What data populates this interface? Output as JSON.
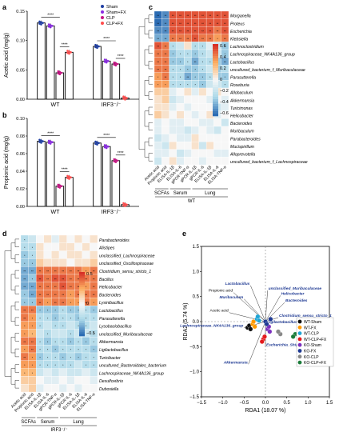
{
  "panels": {
    "a": "a",
    "b": "b",
    "c": "c",
    "d": "d",
    "e": "e"
  },
  "colors": {
    "sham": "#1f3fa3",
    "sham_fx": "#8a2be2",
    "clp": "#c71585",
    "clp_fx": "#ff4d4d",
    "hm_hi": "#d73027",
    "hm_lo": "#2b6bb3",
    "hm_mid": "#f7f7f7"
  },
  "legend_ab": [
    "Sham",
    "Sham+FX",
    "CLP",
    "CLP+FX"
  ],
  "sig": "****",
  "chart_data": [
    {
      "type": "bar",
      "panel": "a",
      "ylabel": "Acetic acid (mg/g)",
      "ylim": [
        0,
        0.15
      ],
      "yticks": [
        "0.00",
        "0.05",
        "0.10",
        "0.15"
      ],
      "categories": [
        "WT",
        "IRF3⁻/⁻"
      ],
      "series": [
        {
          "name": "Sham",
          "values": [
            0.13,
            0.09
          ]
        },
        {
          "name": "Sham+FX",
          "values": [
            0.125,
            0.065
          ]
        },
        {
          "name": "CLP",
          "values": [
            0.045,
            0.06
          ]
        },
        {
          "name": "CLP+FX",
          "values": [
            0.08,
            0.002
          ]
        }
      ]
    },
    {
      "type": "bar",
      "panel": "b",
      "ylabel": "Propionic acid (mg/g)",
      "ylim": [
        0,
        0.1
      ],
      "yticks": [
        "0.00",
        "0.02",
        "0.04",
        "0.06",
        "0.08",
        "0.10"
      ],
      "categories": [
        "WT",
        "IRF3⁻/⁻"
      ],
      "series": [
        {
          "name": "Sham",
          "values": [
            0.074,
            0.072
          ]
        },
        {
          "name": "Sham+FX",
          "values": [
            0.073,
            0.068
          ]
        },
        {
          "name": "CLP",
          "values": [
            0.023,
            0.052
          ]
        },
        {
          "name": "CLP+FX",
          "values": [
            0.033,
            0.002
          ]
        }
      ]
    },
    {
      "type": "heatmap",
      "panel": "c",
      "rows": [
        "Morganella",
        "Proteus",
        "Escherichia",
        "Klebsiella",
        "Lachnoclostridium",
        "Lachnospiraceae_NK4A136_group",
        "Lactobacillus",
        "uncultured_bacterium_f_Muribaculaceae",
        "Parasutterella",
        "Roseburia",
        "Allobaculum",
        "Akkermansia",
        "Turicimonas",
        "Helicobacter",
        "Bacteroides",
        "Muribaculum",
        "Parabacteroides",
        "Mucispirillum",
        "Alloprevotella",
        "uncultured_bacterium_f_Lachnospiraceae"
      ],
      "cols": [
        "Acetic acid",
        "Propionic acid",
        "ELISA-IL-1β",
        "ELISA-IL-6",
        "gPCR-TNF-α",
        "gPCR-IL-1β",
        "gPCR-IL-6",
        "ELISA-IL-1β",
        "ELISA-IL-6",
        "ELISA-TNF-α"
      ],
      "values": [
        [
          -0.7,
          -0.6,
          0.6,
          0.6,
          0.6,
          0.6,
          0.6,
          0.6,
          0.6,
          0.6
        ],
        [
          -0.7,
          -0.6,
          0.6,
          0.6,
          0.6,
          0.6,
          0.6,
          0.6,
          0.6,
          0.6
        ],
        [
          -0.6,
          -0.6,
          0.6,
          0.6,
          0.6,
          0.6,
          0.6,
          0.6,
          0.5,
          0.6
        ],
        [
          -0.5,
          -0.5,
          0.5,
          0.5,
          0.5,
          0.6,
          0.5,
          0.5,
          0.4,
          0.5
        ],
        [
          0.6,
          0.5,
          -0.3,
          -0.2,
          0.1,
          -0.3,
          -0.3,
          -0.1,
          -0.2,
          -0.4
        ],
        [
          0.5,
          0.5,
          -0.4,
          -0.3,
          -0.3,
          -0.4,
          -0.3,
          -0.2,
          -0.2,
          -0.4
        ],
        [
          0.5,
          0.5,
          -0.4,
          -0.4,
          -0.3,
          -0.5,
          -0.3,
          -0.3,
          -0.4,
          -0.5
        ],
        [
          0.5,
          0.5,
          -0.3,
          -0.3,
          -0.4,
          -0.4,
          -0.3,
          -0.2,
          -0.4,
          -0.3
        ],
        [
          0.4,
          0.5,
          -0.3,
          -0.3,
          -0.5,
          -0.4,
          -0.4,
          -0.3,
          -0.4,
          -0.4
        ],
        [
          0.4,
          0.4,
          -0.3,
          -0.3,
          -0.3,
          -0.3,
          -0.4,
          -0.2,
          -0.2,
          -0.3
        ],
        [
          0.2,
          0.2,
          -0.1,
          0,
          0.1,
          -0.1,
          0.1,
          0,
          0.1,
          0
        ],
        [
          0.1,
          0.2,
          -0.2,
          -0.1,
          0,
          0,
          0,
          -0.1,
          0,
          -0.1
        ],
        [
          0.1,
          0.1,
          -0.1,
          0,
          -0.1,
          0,
          0,
          0,
          -0.2,
          -0.1
        ],
        [
          0.2,
          0.1,
          0,
          0.1,
          0,
          -0.1,
          0,
          0.1,
          -0.1,
          0
        ],
        [
          -0.1,
          0,
          -0.1,
          -0.1,
          0,
          0,
          -0.1,
          -0.1,
          0,
          -0.2
        ],
        [
          -0.1,
          0,
          -0.1,
          -0.1,
          -0.2,
          -0.1,
          0,
          -0.1,
          -0.2,
          0
        ],
        [
          -0.2,
          -0.1,
          0,
          -0.1,
          -0.1,
          0.1,
          0,
          0,
          0,
          0
        ],
        [
          -0.1,
          -0.2,
          0.1,
          0,
          0,
          0.1,
          -0.2,
          0.1,
          0,
          0
        ],
        [
          -0.1,
          -0.1,
          0,
          -0.2,
          -0.1,
          0,
          0,
          0,
          -0.1,
          -0.1
        ],
        [
          -0.2,
          0,
          0.1,
          -0.1,
          0,
          0,
          -0.1,
          0,
          0,
          0
        ]
      ],
      "scale": {
        "ticks": [
          "0.6",
          "0.4",
          "0.2",
          "0",
          "−0.2",
          "−0.4",
          "−0.6"
        ]
      },
      "groups": [
        "SCFAs",
        "Serum",
        "Lung"
      ],
      "group_label": "WT"
    },
    {
      "type": "heatmap",
      "panel": "d",
      "rows": [
        "Parabacteroides",
        "Alistipes",
        "unclassified_Lachnospiraceae",
        "unclassified_Oscillospiraceae",
        "Clostridium_sensu_stricto_1",
        "Bacillus",
        "Helicobacter",
        "Bacteroides",
        "Lysinibacillus",
        "Lactobacillus",
        "Parasutterella",
        "Lysobaclobacillus",
        "unclassified_Muribaculaceae",
        "Akkermansia",
        "Ligilactobacillus",
        "Turicibacter",
        "uncultured_Bacteroidales_bacterium",
        "Lachnospiraceae_NK4A136_group",
        "Desulfovibrio",
        "Dubosiella"
      ],
      "cols": [
        "Acetic acid",
        "Propionic acid",
        "ELISA-IL-1β",
        "ELISA-IL-6",
        "gPCR-TNF-α",
        "gPCR-IL-1β",
        "gPCR-IL-6",
        "ELISA-IL-1β",
        "ELISA-IL-6",
        "ELISA-TNF-α"
      ],
      "values": [
        [
          -0.3,
          -0.2,
          0,
          0.1,
          -0.1,
          0.1,
          0,
          0.1,
          0,
          0.1
        ],
        [
          -0.3,
          -0.3,
          0.1,
          0,
          0,
          0.1,
          0.1,
          0,
          0.1,
          0
        ],
        [
          -0.4,
          -0.3,
          0.1,
          0,
          0.1,
          0,
          0.1,
          0.1,
          0,
          0.1
        ],
        [
          -0.4,
          -0.4,
          0.2,
          0.1,
          0.1,
          0.1,
          0,
          0.1,
          0.1,
          0.2
        ],
        [
          -0.5,
          -0.5,
          0.5,
          0.5,
          0.5,
          0.5,
          0.5,
          0.5,
          0.4,
          0.5
        ],
        [
          -0.5,
          -0.4,
          0.6,
          0.5,
          0.6,
          0.6,
          0.5,
          0.5,
          0.5,
          0.5
        ],
        [
          -0.5,
          -0.5,
          0.5,
          0.5,
          0.5,
          0.6,
          0.5,
          0.5,
          0.4,
          0.5
        ],
        [
          -0.4,
          -0.5,
          0.5,
          0.5,
          0.5,
          0.5,
          0.4,
          0.5,
          0.5,
          0.5
        ],
        [
          -0.4,
          -0.4,
          0.5,
          0.4,
          0.5,
          0.5,
          0.4,
          0.4,
          0.5,
          0.4
        ],
        [
          0.5,
          0.5,
          -0.4,
          -0.4,
          -0.4,
          -0.3,
          -0.4,
          -0.4,
          -0.3,
          -0.4
        ],
        [
          0.5,
          0.4,
          -0.3,
          -0.3,
          -0.4,
          -0.3,
          -0.3,
          -0.4,
          -0.3,
          -0.3
        ],
        [
          0.4,
          0.4,
          -0.3,
          -0.2,
          -0.3,
          -0.3,
          -0.2,
          -0.3,
          -0.3,
          -0.2
        ],
        [
          0.4,
          0.3,
          -0.2,
          -0.3,
          -0.2,
          -0.2,
          -0.3,
          -0.2,
          -0.2,
          -0.3
        ],
        [
          0.5,
          0.5,
          -0.3,
          -0.4,
          -0.3,
          -0.3,
          -0.4,
          -0.3,
          -0.4,
          -0.3
        ],
        [
          0.4,
          0.5,
          -0.3,
          -0.3,
          -0.4,
          -0.3,
          -0.3,
          -0.3,
          -0.3,
          -0.4
        ],
        [
          0.5,
          0.4,
          -0.4,
          -0.3,
          -0.3,
          -0.4,
          -0.3,
          -0.4,
          -0.3,
          -0.3
        ],
        [
          0.4,
          0.4,
          -0.3,
          -0.3,
          -0.3,
          -0.3,
          -0.3,
          -0.2,
          -0.3,
          -0.3
        ],
        [
          0.3,
          0.3,
          -0.2,
          -0.1,
          -0.2,
          -0.1,
          -0.2,
          -0.2,
          -0.1,
          -0.2
        ],
        [
          0.2,
          0.2,
          0,
          -0.1,
          -0.1,
          0,
          -0.1,
          0,
          0,
          -0.1
        ],
        [
          0.1,
          0.2,
          -0.1,
          0,
          0,
          -0.1,
          0,
          -0.1,
          0,
          0
        ]
      ],
      "scale": {
        "ticks": [
          "0.5",
          "0",
          "−0.5"
        ]
      },
      "groups": [
        "SCFAs",
        "Serum",
        "Lung"
      ],
      "group_label": "IRF3⁻/⁻"
    },
    {
      "type": "scatter",
      "panel": "e",
      "xlabel": "RDA1 (18.07 %)",
      "ylabel": "RDA2 (5.74 %)",
      "xlim": [
        -1.5,
        1.5
      ],
      "ylim": [
        -1.5,
        1.5
      ],
      "xticks": [
        "−1.5",
        "−1.0",
        "−0.5",
        "0.0",
        "0.5",
        "1.0",
        "1.5"
      ],
      "yticks": [
        "1.5",
        "1.0",
        "0.5",
        "0.0",
        "−0.5",
        "−1.0",
        "−1.5"
      ],
      "legend": [
        {
          "name": "WT-Sham",
          "color": "#111111"
        },
        {
          "name": "WT-FX",
          "color": "#ff9900"
        },
        {
          "name": "WT-CLP",
          "color": "#21a6d6"
        },
        {
          "name": "WT-CLP+FX",
          "color": "#e41a1c"
        },
        {
          "name": "KO-Sham",
          "color": "#7b2fbe"
        },
        {
          "name": "KO-FX",
          "color": "#1f3a93"
        },
        {
          "name": "KO-CLP",
          "color": "#888888"
        },
        {
          "name": "KO-CLP+FX",
          "color": "#1b7c3a"
        }
      ],
      "points": [
        {
          "g": 0,
          "x": -0.42,
          "y": -0.12
        },
        {
          "g": 0,
          "x": -0.38,
          "y": -0.08
        },
        {
          "g": 0,
          "x": -0.35,
          "y": -0.15
        },
        {
          "g": 1,
          "x": -0.3,
          "y": -0.05
        },
        {
          "g": 1,
          "x": -0.28,
          "y": 0.0
        },
        {
          "g": 1,
          "x": -0.25,
          "y": -0.1
        },
        {
          "g": 2,
          "x": -0.2,
          "y": 0.05
        },
        {
          "g": 2,
          "x": -0.18,
          "y": 0.1
        },
        {
          "g": 2,
          "x": -0.15,
          "y": 0.02
        },
        {
          "g": 3,
          "x": -0.05,
          "y": -0.35
        },
        {
          "g": 3,
          "x": -0.08,
          "y": -0.4
        },
        {
          "g": 3,
          "x": -0.02,
          "y": -0.3
        },
        {
          "g": 4,
          "x": 0.05,
          "y": -0.15
        },
        {
          "g": 4,
          "x": 0.08,
          "y": -0.1
        },
        {
          "g": 4,
          "x": 0.1,
          "y": -0.2
        },
        {
          "g": 5,
          "x": 0.0,
          "y": 0.0
        },
        {
          "g": 5,
          "x": 0.12,
          "y": 0.05
        },
        {
          "g": 5,
          "x": 0.03,
          "y": -0.05
        },
        {
          "g": 6,
          "x": 0.35,
          "y": -0.25
        },
        {
          "g": 6,
          "x": 0.3,
          "y": -0.2
        },
        {
          "g": 7,
          "x": 0.7,
          "y": -0.25
        },
        {
          "g": 7,
          "x": 0.65,
          "y": -0.3
        }
      ],
      "arrows": [
        {
          "label": "Lactobacillus",
          "x": -0.35,
          "y": 0.72
        },
        {
          "label": "unclassified_Muribaculaceae",
          "x": 0.05,
          "y": 0.62
        },
        {
          "label": "Helicobacter",
          "x": 0.35,
          "y": 0.52
        },
        {
          "label": "Muribaculum",
          "x": -0.5,
          "y": 0.45
        },
        {
          "label": "Propionic acid",
          "x": -0.75,
          "y": 0.58
        },
        {
          "label": "Bacteroides",
          "x": 0.45,
          "y": 0.38
        },
        {
          "label": "Clostridium_sensu_stricto_1",
          "x": 0.3,
          "y": 0.08
        },
        {
          "label": "Ligilactobacillus",
          "x": 0.02,
          "y": -0.05
        },
        {
          "label": "Acetic acid",
          "x": -0.85,
          "y": 0.18
        },
        {
          "label": "Lachnospiraceae_NK4A136_group",
          "x": -0.5,
          "y": -0.12
        },
        {
          "label": "Escherichia_Shigella",
          "x": 0.0,
          "y": -0.5
        },
        {
          "label": "Akkermansia",
          "x": -0.4,
          "y": -0.85
        }
      ]
    }
  ]
}
